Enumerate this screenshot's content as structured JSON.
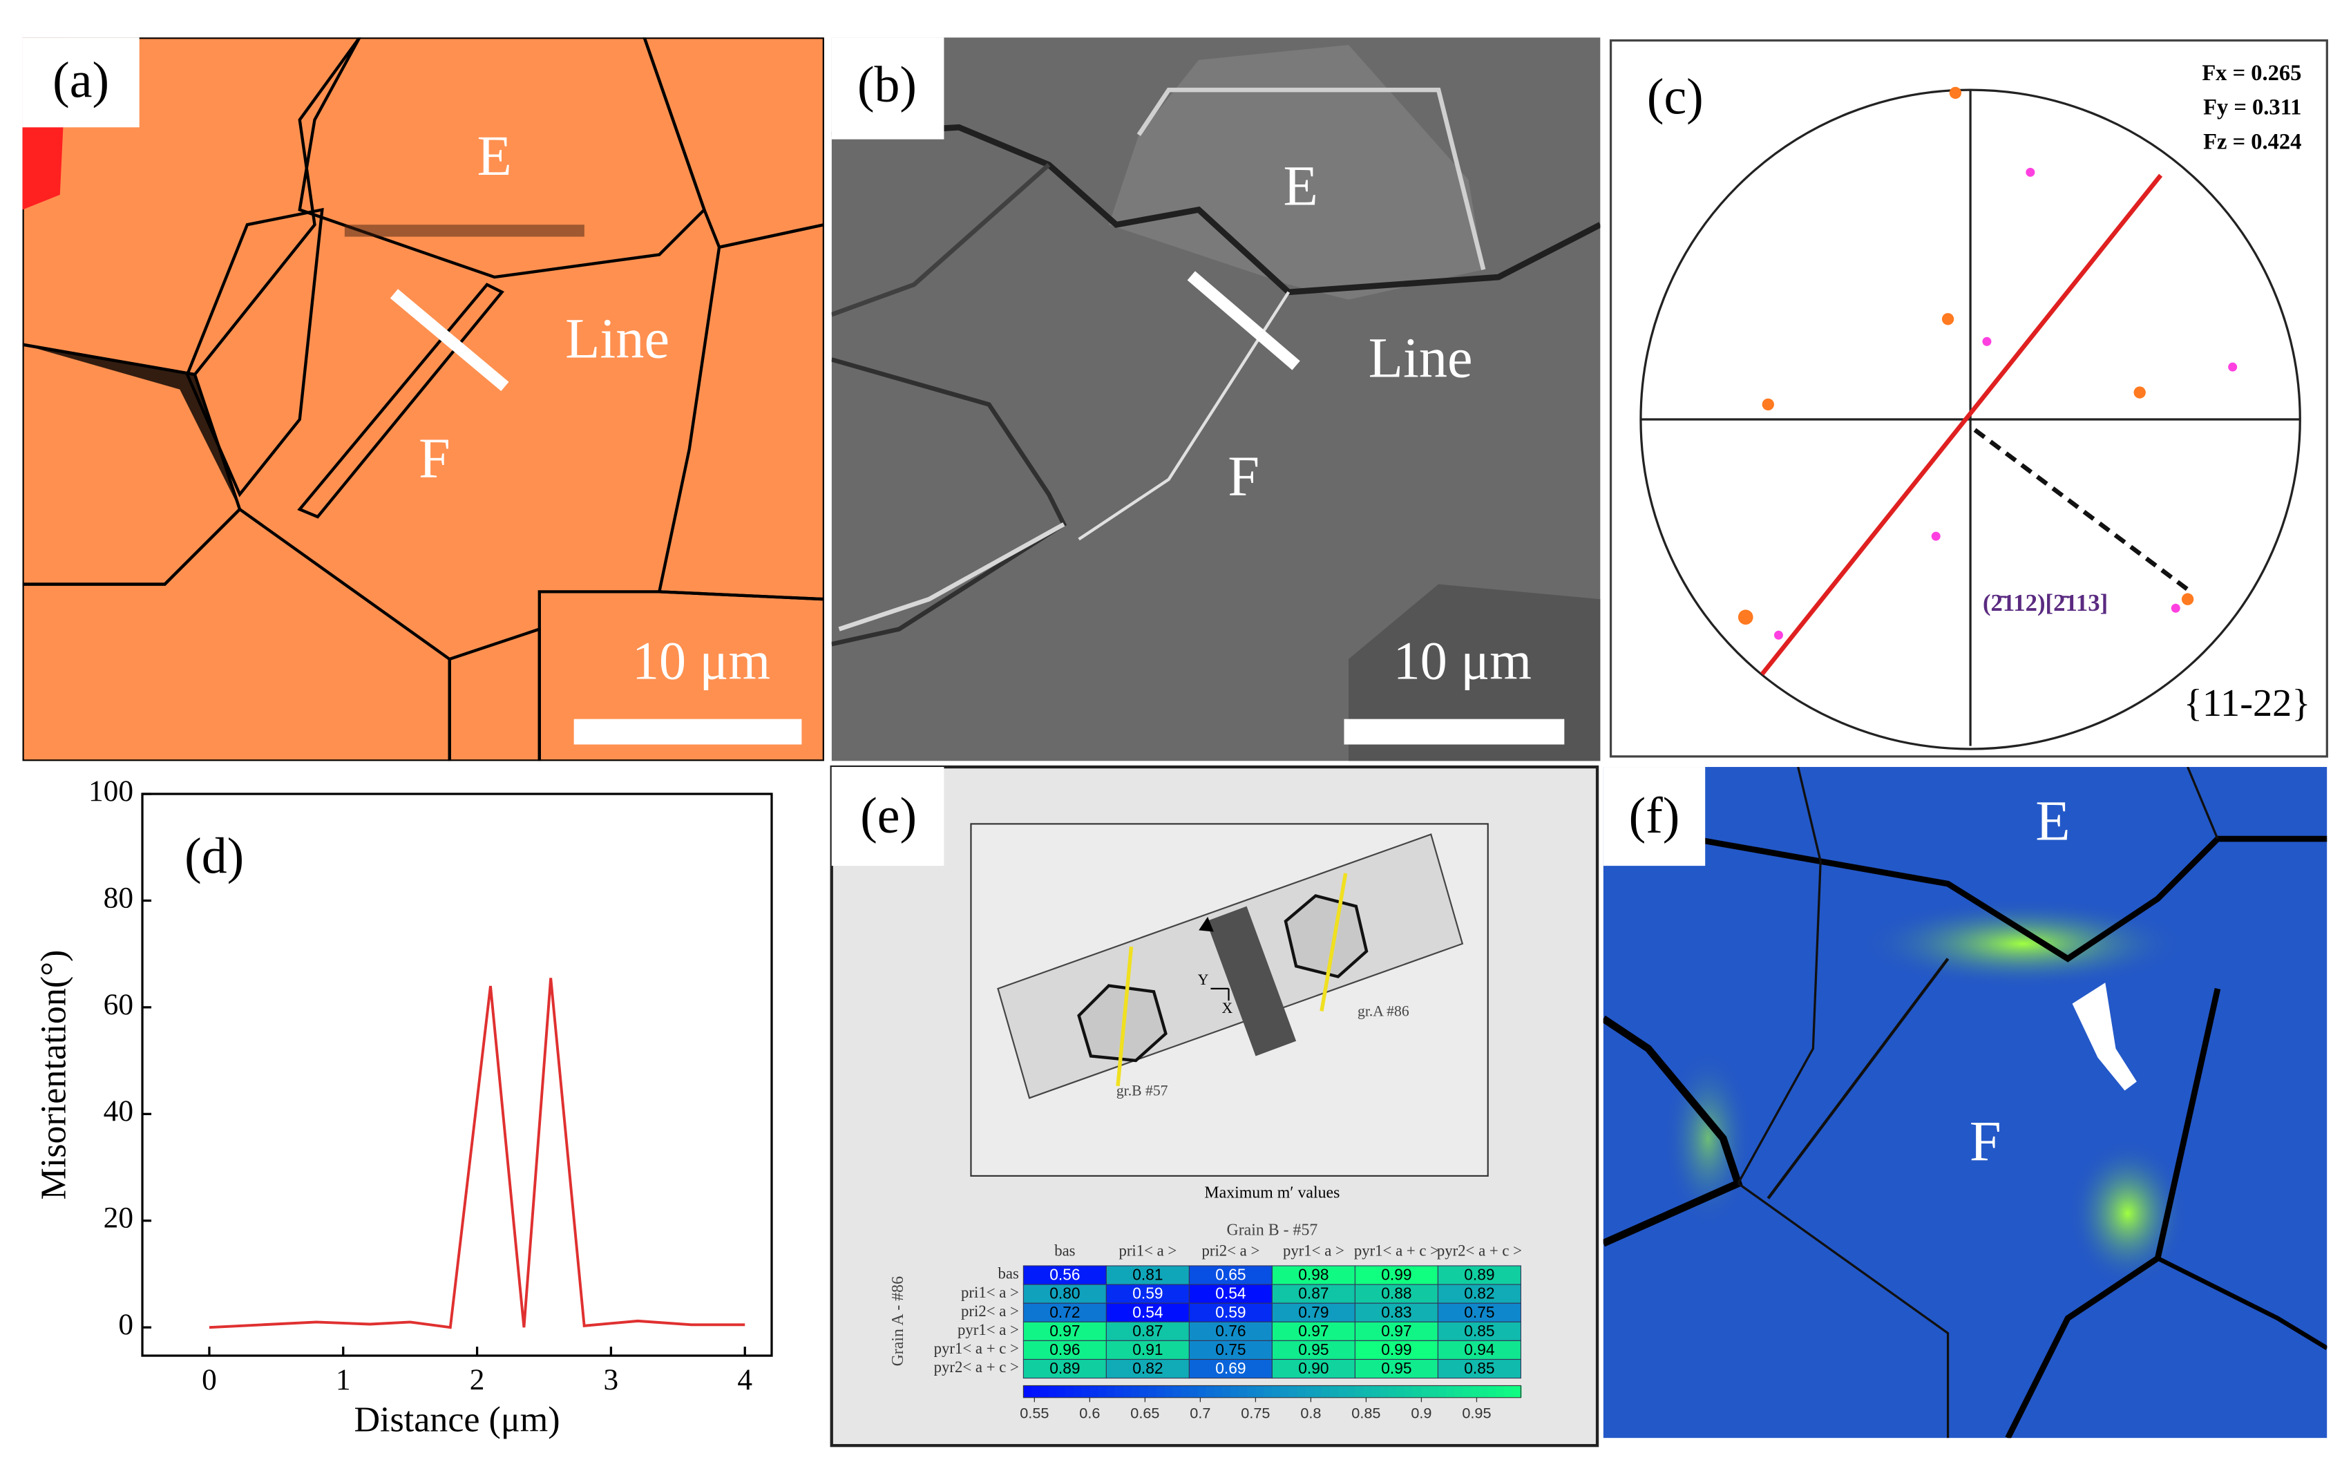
{
  "panels": {
    "a": {
      "label": "(a)",
      "grains": [
        "E",
        "F"
      ],
      "line": "Line",
      "scale_bar": "10 μm"
    },
    "b": {
      "label": "(b)",
      "grains": [
        "E",
        "F"
      ],
      "line": "Line",
      "scale_bar": "10 μm"
    },
    "c": {
      "label": "(c)",
      "factors": [
        "Fx = 0.265",
        "Fy = 0.311",
        "Fz = 0.424"
      ],
      "plane": "(2̄112)[2̄113]",
      "family": "{11-22}"
    },
    "e": {
      "label": "(e)",
      "grain_a": "gr.A #86",
      "grain_b": "gr.B #57",
      "axes": [
        "Y",
        "X"
      ],
      "caption": "Maximum m′ values",
      "col_title": "Grain B - #57",
      "row_title": "Grain A - #86",
      "systems": [
        "bas",
        "pri1< a >",
        "pri2< a >",
        "pyr1< a >",
        "pyr1< a + c >",
        "pyr2< a + c >"
      ],
      "values": [
        [
          0.56,
          0.81,
          0.65,
          0.98,
          0.99,
          0.89
        ],
        [
          0.8,
          0.59,
          0.54,
          0.87,
          0.88,
          0.82
        ],
        [
          0.72,
          0.54,
          0.59,
          0.79,
          0.83,
          0.75
        ],
        [
          0.97,
          0.87,
          0.76,
          0.97,
          0.97,
          0.85
        ],
        [
          0.96,
          0.91,
          0.75,
          0.95,
          0.99,
          0.94
        ],
        [
          0.89,
          0.82,
          0.69,
          0.9,
          0.95,
          0.85
        ]
      ],
      "value_labels": [
        [
          "0.56",
          "0.81",
          "0.65",
          "0.98",
          "0.99",
          "0.89"
        ],
        [
          "0.80",
          "0.59",
          "0.54",
          "0.87",
          "0.88",
          "0.82"
        ],
        [
          "0.72",
          "0.54",
          "0.59",
          "0.79",
          "0.83",
          "0.75"
        ],
        [
          "0.97",
          "0.87",
          "0.76",
          "0.97",
          "0.97",
          "0.85"
        ],
        [
          "0.96",
          "0.91",
          "0.75",
          "0.95",
          "0.99",
          "0.94"
        ],
        [
          "0.89",
          "0.82",
          "0.69",
          "0.90",
          "0.95",
          "0.85"
        ]
      ],
      "clim": [
        0.54,
        0.99
      ],
      "colormap": [
        "#0010ff",
        "#1090c8",
        "#10ff80"
      ],
      "colorbar_ticks": [
        0.55,
        0.6,
        0.65,
        0.7,
        0.75,
        0.8,
        0.85,
        0.9,
        0.95
      ]
    },
    "f": {
      "label": "(f)",
      "grains": [
        "E",
        "F"
      ]
    }
  },
  "chart_data": {
    "type": "line",
    "label": "(d)",
    "x_label": "Distance (μm)",
    "y_label": "Misorientation(°)",
    "x": [
      0,
      0.4,
      0.8,
      1.2,
      1.5,
      1.8,
      2.1,
      2.35,
      2.55,
      2.8,
      3.2,
      3.6,
      4.0
    ],
    "values": [
      0,
      0.5,
      1,
      0.6,
      1,
      0,
      64,
      0,
      65.5,
      0.3,
      1.2,
      0.5,
      0.5
    ],
    "color": "#e03030",
    "xlim": [
      -0.5,
      4.2
    ],
    "ylim": [
      -5.3,
      100
    ],
    "xticks": [
      0,
      1,
      2,
      3,
      4
    ],
    "yticks": [
      0,
      20,
      40,
      60,
      80,
      100
    ]
  }
}
